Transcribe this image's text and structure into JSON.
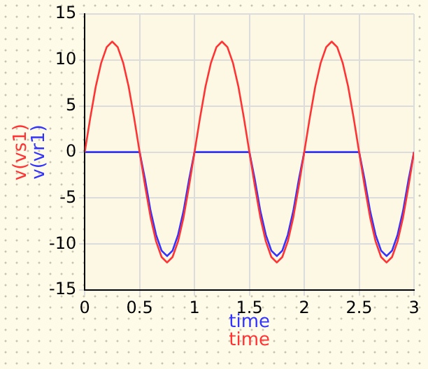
{
  "chart_data": {
    "type": "line",
    "xlabel": "time",
    "legend": "left",
    "grid": true,
    "marker": "none",
    "line_style": "solid",
    "xlim": [
      0,
      3
    ],
    "ylim": [
      -15,
      15
    ],
    "xticks": [
      0,
      0.5,
      1,
      1.5,
      2,
      2.5,
      3
    ],
    "yticks": [
      -15,
      -10,
      -5,
      0,
      5,
      10,
      15
    ],
    "x": [
      0,
      0.05,
      0.1,
      0.15,
      0.2,
      0.25,
      0.3,
      0.35,
      0.4,
      0.45,
      0.5,
      0.55,
      0.6,
      0.65,
      0.7,
      0.75,
      0.8,
      0.85,
      0.9,
      0.95,
      1,
      1.05,
      1.1,
      1.15,
      1.2,
      1.25,
      1.3,
      1.35,
      1.4,
      1.45,
      1.5,
      1.55,
      1.6,
      1.65,
      1.7,
      1.75,
      1.8,
      1.85,
      1.9,
      1.95,
      2,
      2.05,
      2.1,
      2.15,
      2.2,
      2.25,
      2.3,
      2.35,
      2.4,
      2.45,
      2.5,
      2.55,
      2.6,
      2.65,
      2.7,
      2.75,
      2.8,
      2.85,
      2.9,
      2.95,
      3
    ],
    "series": [
      {
        "name": "v(vs1)",
        "color": "#ff3333",
        "values": [
          0,
          3.7,
          7.1,
          9.7,
          11.4,
          12,
          11.4,
          9.7,
          7.1,
          3.7,
          0,
          -3.7,
          -7.1,
          -9.7,
          -11.4,
          -12,
          -11.4,
          -9.7,
          -7.1,
          -3.7,
          0,
          3.7,
          7.1,
          9.7,
          11.4,
          12,
          11.4,
          9.7,
          7.1,
          3.7,
          0,
          -3.7,
          -7.1,
          -9.7,
          -11.4,
          -12,
          -11.4,
          -9.7,
          -7.1,
          -3.7,
          0,
          3.7,
          7.1,
          9.7,
          11.4,
          12,
          11.4,
          9.7,
          7.1,
          3.7,
          0,
          -3.7,
          -7.1,
          -9.7,
          -11.4,
          -12,
          -11.4,
          -9.7,
          -7.1,
          -3.7,
          0
        ]
      },
      {
        "name": "v(vr1)",
        "color": "#3333ff",
        "values": [
          0,
          0,
          0,
          0,
          0,
          0,
          0,
          0,
          0,
          0,
          0,
          -3,
          -6.4,
          -9,
          -10.7,
          -11.3,
          -10.7,
          -9,
          -6.4,
          -3,
          0,
          0,
          0,
          0,
          0,
          0,
          0,
          0,
          0,
          0,
          0,
          -3,
          -6.4,
          -9,
          -10.7,
          -11.3,
          -10.7,
          -9,
          -6.4,
          -3,
          0,
          0,
          0,
          0,
          0,
          0,
          0,
          0,
          0,
          0,
          0,
          -3,
          -6.4,
          -9,
          -10.7,
          -11.3,
          -10.7,
          -9,
          -6.4,
          -3,
          0
        ]
      }
    ]
  }
}
